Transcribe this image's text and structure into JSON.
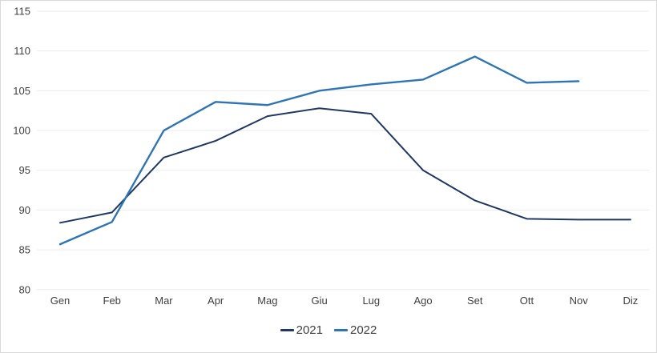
{
  "chart": {
    "background_color": "#ffffff",
    "border_color": "#d9d9d9",
    "grid_color": "#ebebeb",
    "tick_label_color": "#404040",
    "legend_text_color": "#404040"
  },
  "chart_data": {
    "type": "line",
    "title": "",
    "xlabel": "",
    "ylabel": "",
    "categories": [
      "Gen",
      "Feb",
      "Mar",
      "Apr",
      "Mag",
      "Giu",
      "Lug",
      "Ago",
      "Set",
      "Ott",
      "Nov",
      "Diz"
    ],
    "series": [
      {
        "name": "2021",
        "color": "#1f3864",
        "stroke_width": 2,
        "values": [
          88.4,
          89.7,
          96.6,
          98.7,
          101.8,
          102.8,
          102.1,
          95.0,
          91.2,
          88.9,
          88.8,
          88.8
        ]
      },
      {
        "name": "2022",
        "color": "#2e75b6",
        "stroke_width": 2.4,
        "values": [
          85.7,
          88.5,
          100.0,
          103.6,
          103.2,
          105.0,
          105.8,
          106.4,
          109.3,
          106.0,
          106.2,
          null
        ]
      }
    ],
    "ylim": [
      80,
      115
    ],
    "ytick_step": 5,
    "yticks": [
      115,
      110,
      105,
      100,
      95,
      90,
      85,
      80
    ],
    "grid": "horizontal",
    "legend_position": "bottom-center"
  },
  "legend": {
    "items": [
      {
        "label": "2021",
        "color": "#1f3864"
      },
      {
        "label": "2022",
        "color": "#2e75b6"
      }
    ]
  }
}
